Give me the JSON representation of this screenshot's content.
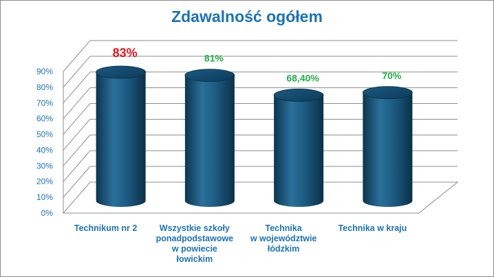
{
  "chart_data": {
    "type": "bar",
    "title": "Zdawalność ogółem",
    "categories": [
      [
        "Technikum nr 2"
      ],
      [
        "Wszystkie szkoły",
        "ponadpodstawowe",
        "w powiecie",
        "łowickim"
      ],
      [
        "Technika",
        "w województwie",
        "łódzkim"
      ],
      [
        "Technika w kraju"
      ]
    ],
    "values": [
      83,
      81,
      68.4,
      70
    ],
    "data_labels": [
      "83%",
      "81%",
      "68,40%",
      "70%"
    ],
    "label_colors": [
      "#e8141c",
      "#1fae4b",
      "#1fae4b",
      "#1fae4b"
    ],
    "yticks": [
      "0%",
      "10%",
      "20%",
      "30%",
      "40%",
      "50%",
      "60%",
      "70%",
      "80%",
      "90%"
    ],
    "ylim": [
      0,
      90
    ],
    "xlabel": "",
    "ylabel": "",
    "grid": true,
    "bar_style": "3d-cylinder",
    "bar_color": "#1d5d84"
  }
}
